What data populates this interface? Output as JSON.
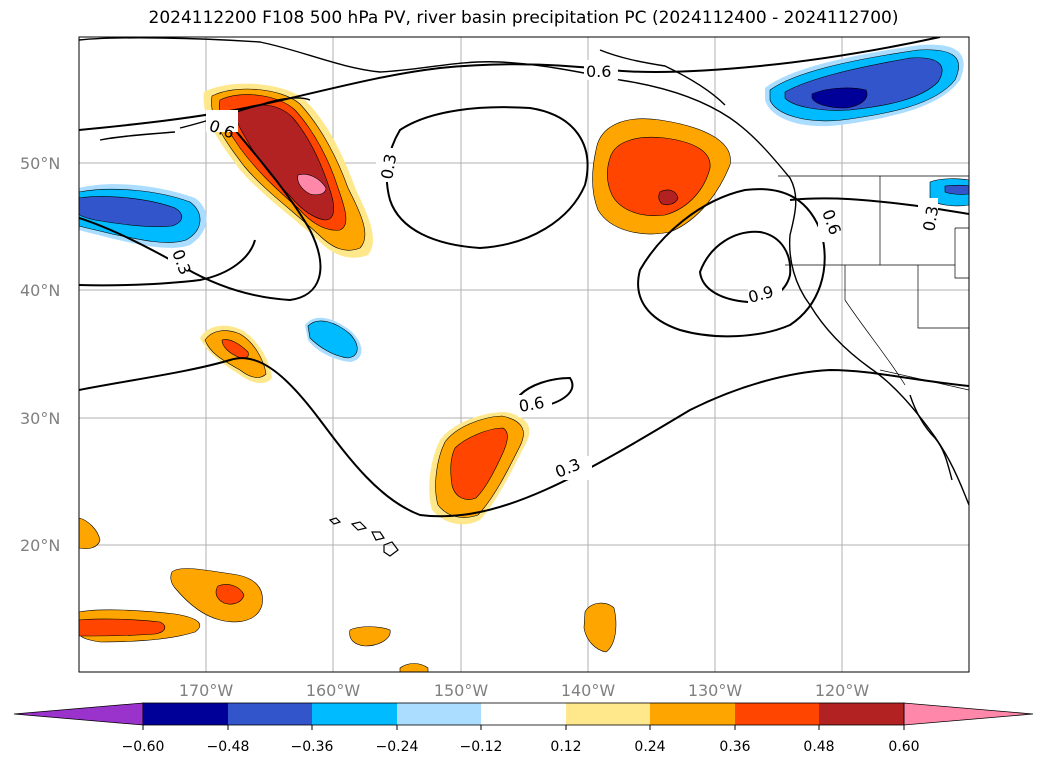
{
  "title": "2024112200 F108 500 hPa PV, river basin precipitation PC (2024112400 - 2024112700)",
  "colors": {
    "purple": "#9933cc",
    "navy": "#000099",
    "royal": "#3355cc",
    "cyan": "#00bbff",
    "lightblue": "#aaddff",
    "white": "#ffffff",
    "yellow": "#ffe88c",
    "orange": "#ffa500",
    "redorange": "#ff4500",
    "crimson": "#b22222",
    "pink": "#ff88aa"
  },
  "map": {
    "lat_labels": [
      "50°N",
      "40°N",
      "30°N",
      "20°N"
    ],
    "lon_labels": [
      "170°W",
      "160°W",
      "150°W",
      "140°W",
      "130°W",
      "120°W"
    ],
    "lat_values": [
      50,
      40,
      30,
      20
    ],
    "lon_values": [
      -170,
      -160,
      -150,
      -140,
      -130,
      -120
    ],
    "extent": {
      "lon_min": -180,
      "lon_max": -110,
      "lat_min": 10,
      "lat_max": 60
    }
  },
  "contour_labels": [
    "0.6",
    "0.3",
    "0.3",
    "0.6",
    "0.9",
    "0.6",
    "0.3",
    "0.3",
    "0.6"
  ],
  "colorbar": {
    "ticks": [
      "−0.60",
      "−0.48",
      "−0.36",
      "−0.24",
      "−0.12",
      "0.12",
      "0.24",
      "0.36",
      "0.48",
      "0.60"
    ]
  }
}
